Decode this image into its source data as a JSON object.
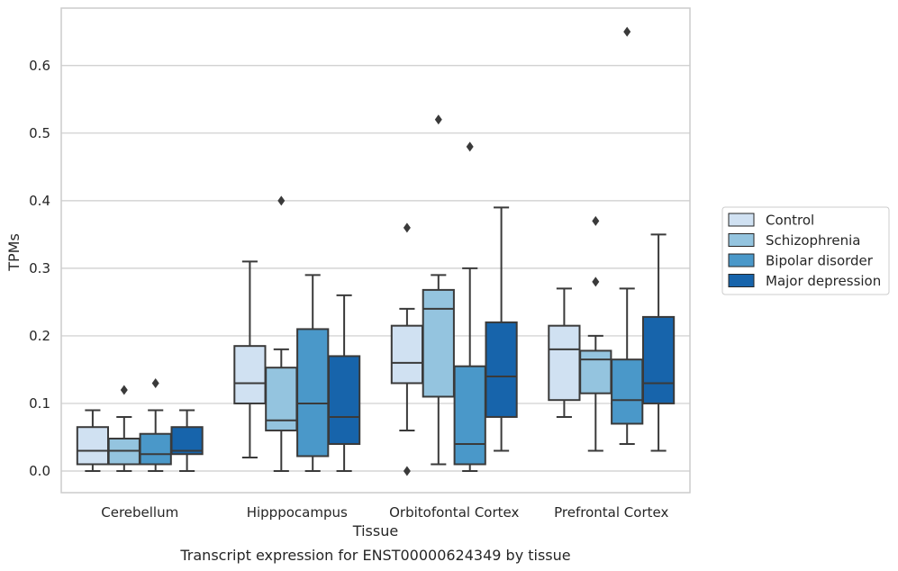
{
  "chart_data": {
    "type": "box",
    "caption": "Transcript expression for ENST00000624349 by tissue",
    "xlabel": "Tissue",
    "ylabel": "TPMs",
    "ylim": [
      -0.032,
      0.685
    ],
    "yticks": [
      0.0,
      0.1,
      0.2,
      0.3,
      0.4,
      0.5,
      0.6
    ],
    "ytick_labels": [
      "0.0",
      "0.1",
      "0.2",
      "0.3",
      "0.4",
      "0.5",
      "0.6"
    ],
    "grid": true,
    "legend_position": "outside-right",
    "categories": [
      "Cerebellum",
      "Hipppocampus",
      "Orbitofontal Cortex",
      "Prefrontal Cortex"
    ],
    "series": [
      {
        "name": "Control",
        "color": "#d0e1f2",
        "boxes": [
          {
            "whislo": 0.0,
            "q1": 0.01,
            "med": 0.03,
            "q3": 0.065,
            "whishi": 0.09,
            "fliers": []
          },
          {
            "whislo": 0.02,
            "q1": 0.1,
            "med": 0.13,
            "q3": 0.185,
            "whishi": 0.31,
            "fliers": []
          },
          {
            "whislo": 0.06,
            "q1": 0.13,
            "med": 0.16,
            "q3": 0.215,
            "whishi": 0.24,
            "fliers": [
              0.36,
              0.0
            ]
          },
          {
            "whislo": 0.08,
            "q1": 0.105,
            "med": 0.18,
            "q3": 0.215,
            "whishi": 0.27,
            "fliers": []
          }
        ]
      },
      {
        "name": "Schizophrenia",
        "color": "#94c4df",
        "boxes": [
          {
            "whislo": 0.0,
            "q1": 0.01,
            "med": 0.03,
            "q3": 0.048,
            "whishi": 0.08,
            "fliers": [
              0.12
            ]
          },
          {
            "whislo": 0.0,
            "q1": 0.06,
            "med": 0.075,
            "q3": 0.153,
            "whishi": 0.18,
            "fliers": [
              0.4
            ]
          },
          {
            "whislo": 0.01,
            "q1": 0.11,
            "med": 0.24,
            "q3": 0.268,
            "whishi": 0.29,
            "fliers": [
              0.52
            ]
          },
          {
            "whislo": 0.03,
            "q1": 0.115,
            "med": 0.165,
            "q3": 0.178,
            "whishi": 0.2,
            "fliers": [
              0.37,
              0.28
            ]
          }
        ]
      },
      {
        "name": "Bipolar disorder",
        "color": "#4a98c9",
        "boxes": [
          {
            "whislo": 0.0,
            "q1": 0.01,
            "med": 0.025,
            "q3": 0.055,
            "whishi": 0.09,
            "fliers": [
              0.13
            ]
          },
          {
            "whislo": 0.0,
            "q1": 0.022,
            "med": 0.1,
            "q3": 0.21,
            "whishi": 0.29,
            "fliers": []
          },
          {
            "whislo": 0.0,
            "q1": 0.01,
            "med": 0.04,
            "q3": 0.155,
            "whishi": 0.3,
            "fliers": [
              0.48
            ]
          },
          {
            "whislo": 0.04,
            "q1": 0.07,
            "med": 0.105,
            "q3": 0.165,
            "whishi": 0.27,
            "fliers": [
              0.65
            ]
          }
        ]
      },
      {
        "name": "Major depression",
        "color": "#1764ab",
        "boxes": [
          {
            "whislo": 0.0,
            "q1": 0.025,
            "med": 0.03,
            "q3": 0.065,
            "whishi": 0.09,
            "fliers": []
          },
          {
            "whislo": 0.0,
            "q1": 0.04,
            "med": 0.08,
            "q3": 0.17,
            "whishi": 0.26,
            "fliers": []
          },
          {
            "whislo": 0.03,
            "q1": 0.08,
            "med": 0.14,
            "q3": 0.22,
            "whishi": 0.39,
            "fliers": []
          },
          {
            "whislo": 0.03,
            "q1": 0.1,
            "med": 0.13,
            "q3": 0.228,
            "whishi": 0.35,
            "fliers": []
          }
        ]
      }
    ]
  },
  "colors": {
    "line": "#3a3a3a",
    "grid": "#cccccc",
    "frame": "#cccccc"
  }
}
